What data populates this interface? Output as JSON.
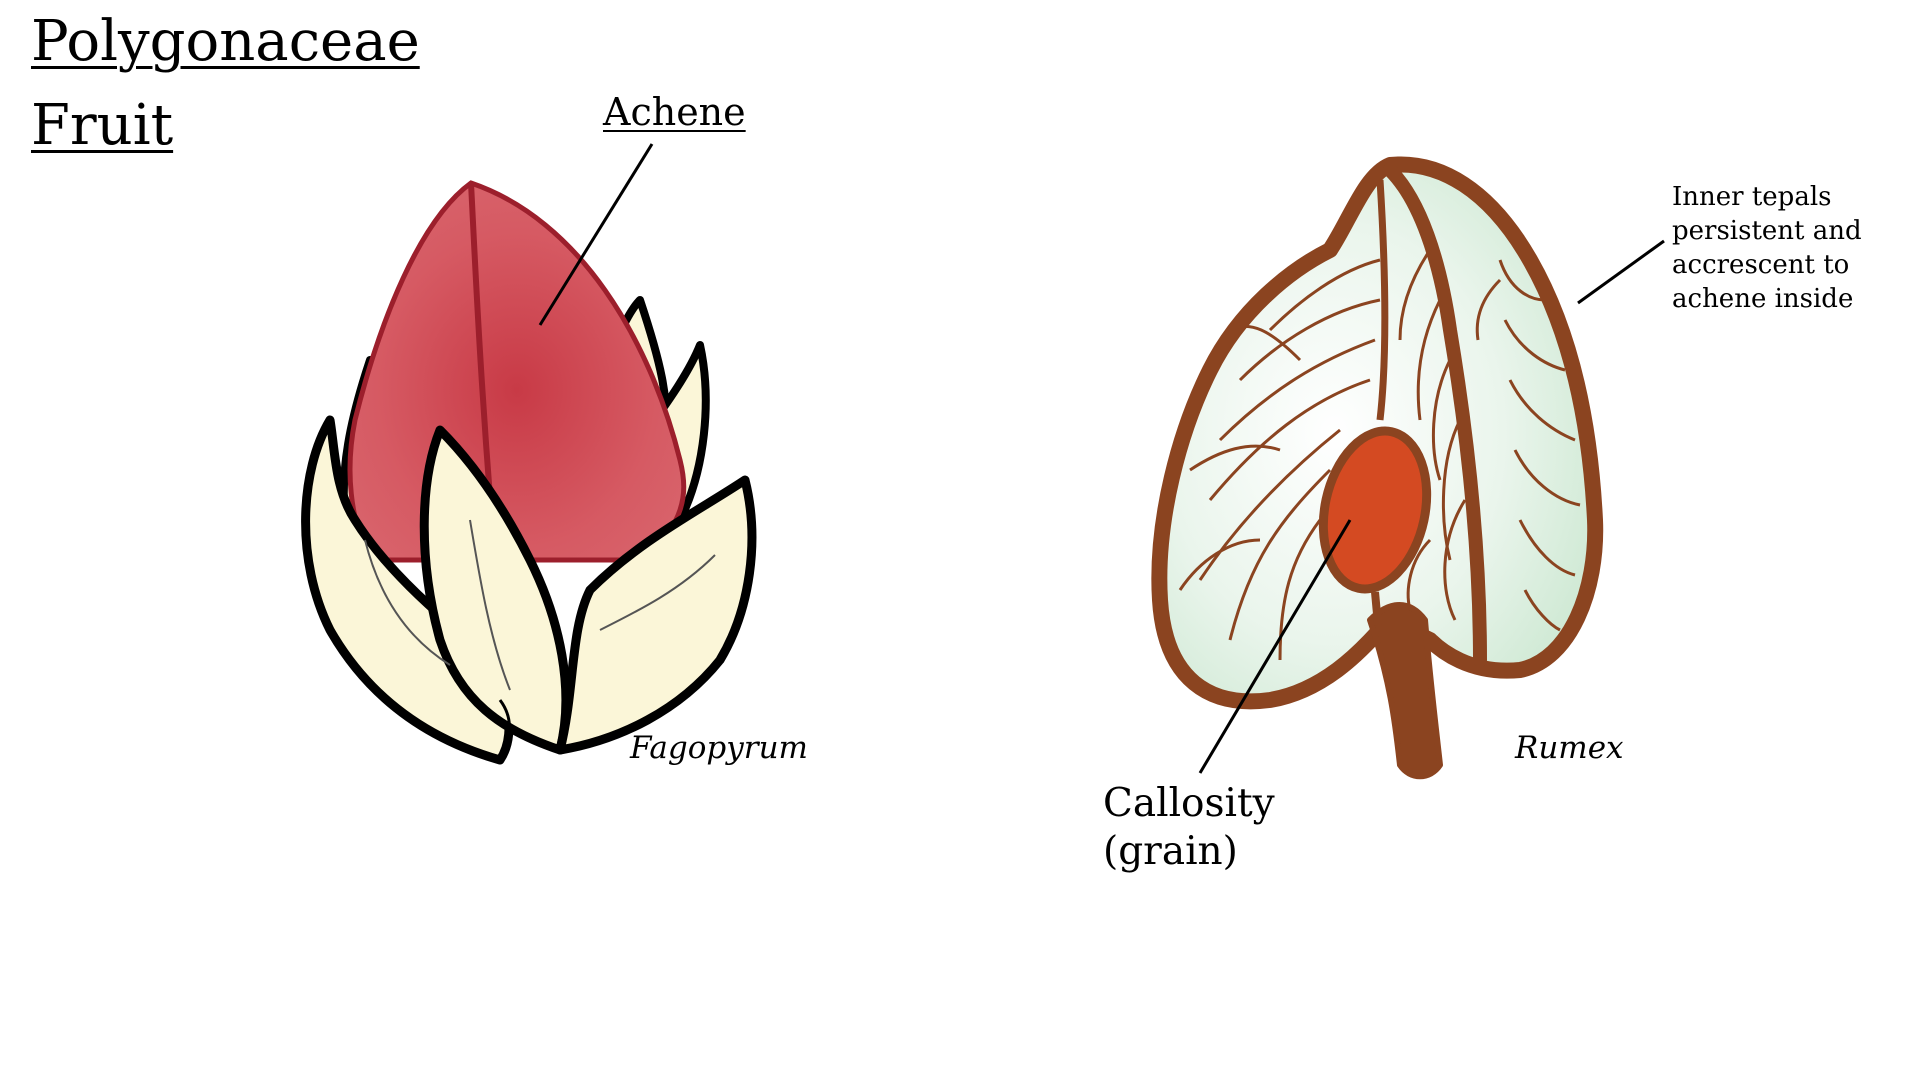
{
  "title": {
    "line1": "Polygonaceae",
    "line2": "Fruit"
  },
  "labels": {
    "achene": "Achene",
    "fagopyrum": "Fagopyrum",
    "rumex": "Rumex",
    "tepals": [
      "Inner tepals",
      "persistent and",
      "accrescent to",
      "achene inside"
    ],
    "callosity": [
      "Callosity",
      "(grain)"
    ]
  },
  "colors": {
    "achene_fill": "#d0525c",
    "achene_outline": "#9c1f2c",
    "tepal_fill": "#fbf6d8",
    "outline": "#000000",
    "rumex_wing": "#8b4420",
    "rumex_fill": "#eef6ef",
    "callosity_fill": "#d44a22"
  }
}
